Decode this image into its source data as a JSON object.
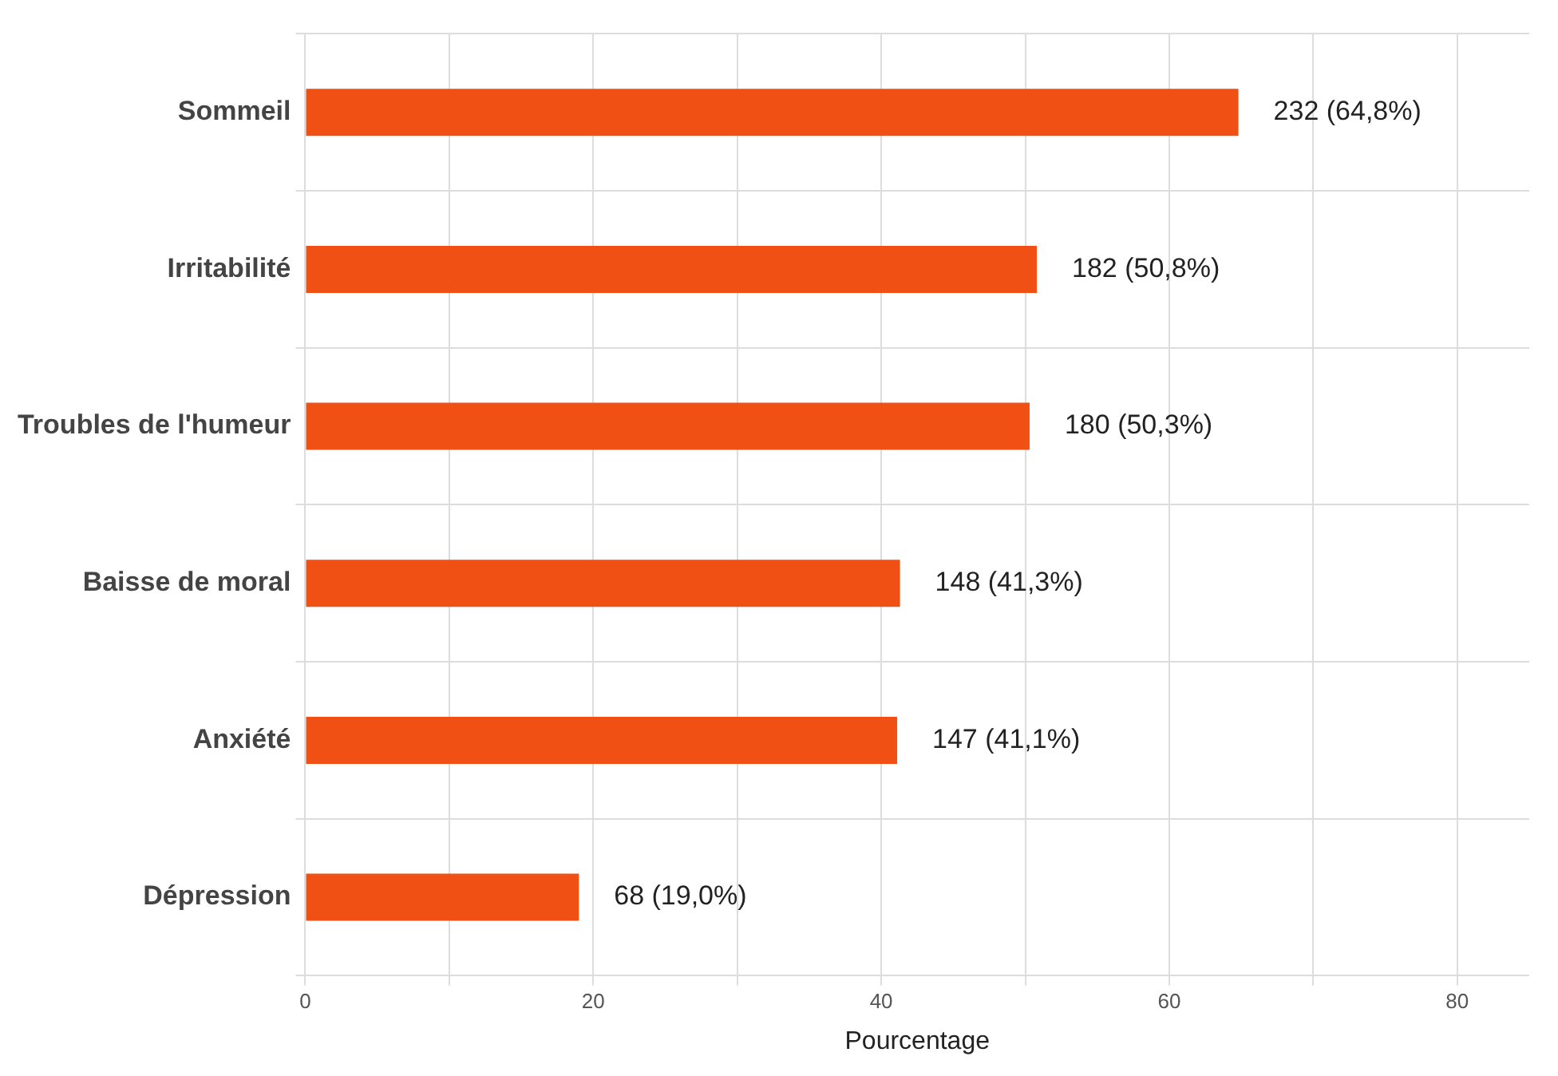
{
  "chart_data": {
    "type": "bar",
    "orientation": "horizontal",
    "xlabel": "Pourcentage",
    "categories": [
      "Sommeil",
      "Irritabilité",
      "Troubles de l'humeur",
      "Baisse de moral",
      "Anxiété",
      "Dépression"
    ],
    "values": [
      64.8,
      50.8,
      50.3,
      41.3,
      41.1,
      19.0
    ],
    "value_labels": [
      "232 (64,8%)",
      "182 (50,8%)",
      "180 (50,3%)",
      "148 (41,3%)",
      "147 (41,1%)",
      "68 (19,0%)"
    ],
    "color": "#f05014",
    "xlim": [
      0,
      85
    ],
    "xticks": [
      0,
      {
        "value": 10,
        "label": null
      },
      20,
      {
        "value": 30,
        "label": null
      },
      40,
      {
        "value": 50,
        "label": null
      },
      60,
      {
        "value": 70,
        "label": null
      },
      80
    ],
    "grid": true
  }
}
